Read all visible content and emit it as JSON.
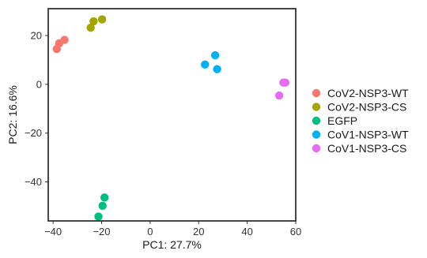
{
  "chart_data": {
    "type": "scatter",
    "xlabel": "PC1: 27.7%",
    "ylabel": "PC2: 16.6%",
    "xlim": [
      -42,
      60
    ],
    "ylim": [
      -56,
      31
    ],
    "xticks": [
      -40,
      -20,
      0,
      20,
      40,
      60
    ],
    "yticks": [
      -40,
      -20,
      0,
      20
    ],
    "grid": false,
    "legend": "right",
    "series": [
      {
        "name": "CoV2-NSP3-WT",
        "color": "#F8766D",
        "points": [
          [
            -38.5,
            14.5
          ],
          [
            -37.5,
            16.8
          ],
          [
            -35.3,
            18.2
          ]
        ]
      },
      {
        "name": "CoV2-NSP3-CS",
        "color": "#A3A500",
        "points": [
          [
            -24.5,
            23.2
          ],
          [
            -23.3,
            25.8
          ],
          [
            -19.8,
            26.6
          ]
        ]
      },
      {
        "name": "EGFP",
        "color": "#00BF7D",
        "points": [
          [
            -21.3,
            -54.2
          ],
          [
            -19.6,
            -49.8
          ],
          [
            -18.8,
            -46.4
          ]
        ]
      },
      {
        "name": "CoV1-NSP3-WT",
        "color": "#00B0F6",
        "points": [
          [
            22.6,
            8.1
          ],
          [
            26.8,
            11.9
          ],
          [
            27.6,
            6.2
          ]
        ]
      },
      {
        "name": "CoV1-NSP3-CS",
        "color": "#E76BF3",
        "points": [
          [
            53.2,
            -4.6
          ],
          [
            54.9,
            0.7
          ],
          [
            55.7,
            0.7
          ]
        ]
      }
    ]
  }
}
